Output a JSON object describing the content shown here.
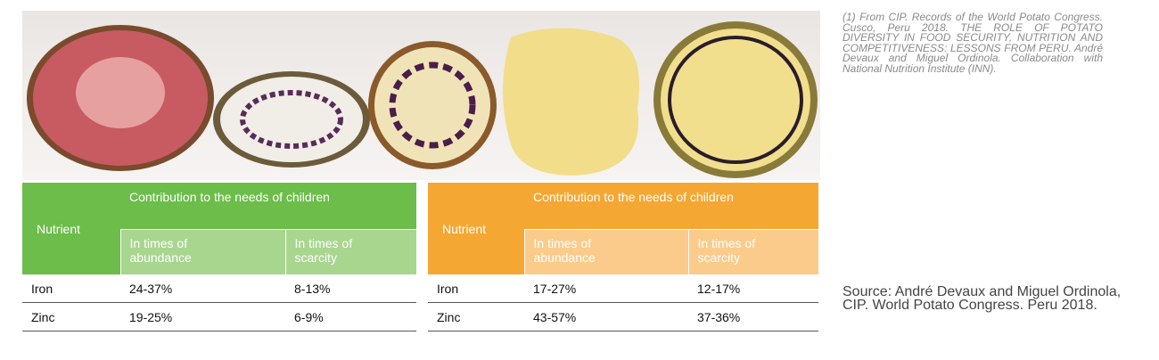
{
  "footnote": "(1) From CIP. Records of the World Potato Congress. Cusco, Peru 2018. THE ROLE OF POTATO DIVERSITY IN FOOD SECURITY, NUTRITION AND COMPETITIVENESS: LESSONS FROM PERU. André Devaux and Miguel Ordinola. Collaboration with National Nutrition Institute (INN).",
  "source": "Source: André Devaux and Miguel Ordinola, CIP. World Potato Congress. Peru 2018.",
  "tables": [
    {
      "header": {
        "nutrient": "Nutrient",
        "group": "Contribution to the needs of children",
        "columns": [
          "In times of abundance",
          "In times of scarcity"
        ]
      },
      "rows": [
        [
          "Iron",
          "24-37%",
          "8-13%"
        ],
        [
          "Zinc",
          "19-25%",
          "6-9%"
        ]
      ]
    },
    {
      "header": {
        "nutrient": "Nutrient",
        "group": "Contribution to the needs of children",
        "columns": [
          "In times of abundance",
          "In times of scarcity"
        ]
      },
      "rows": [
        [
          "Iron",
          "17-27%",
          "12-17%"
        ],
        [
          "Zinc",
          "43-57%",
          "37-36%"
        ]
      ]
    }
  ]
}
